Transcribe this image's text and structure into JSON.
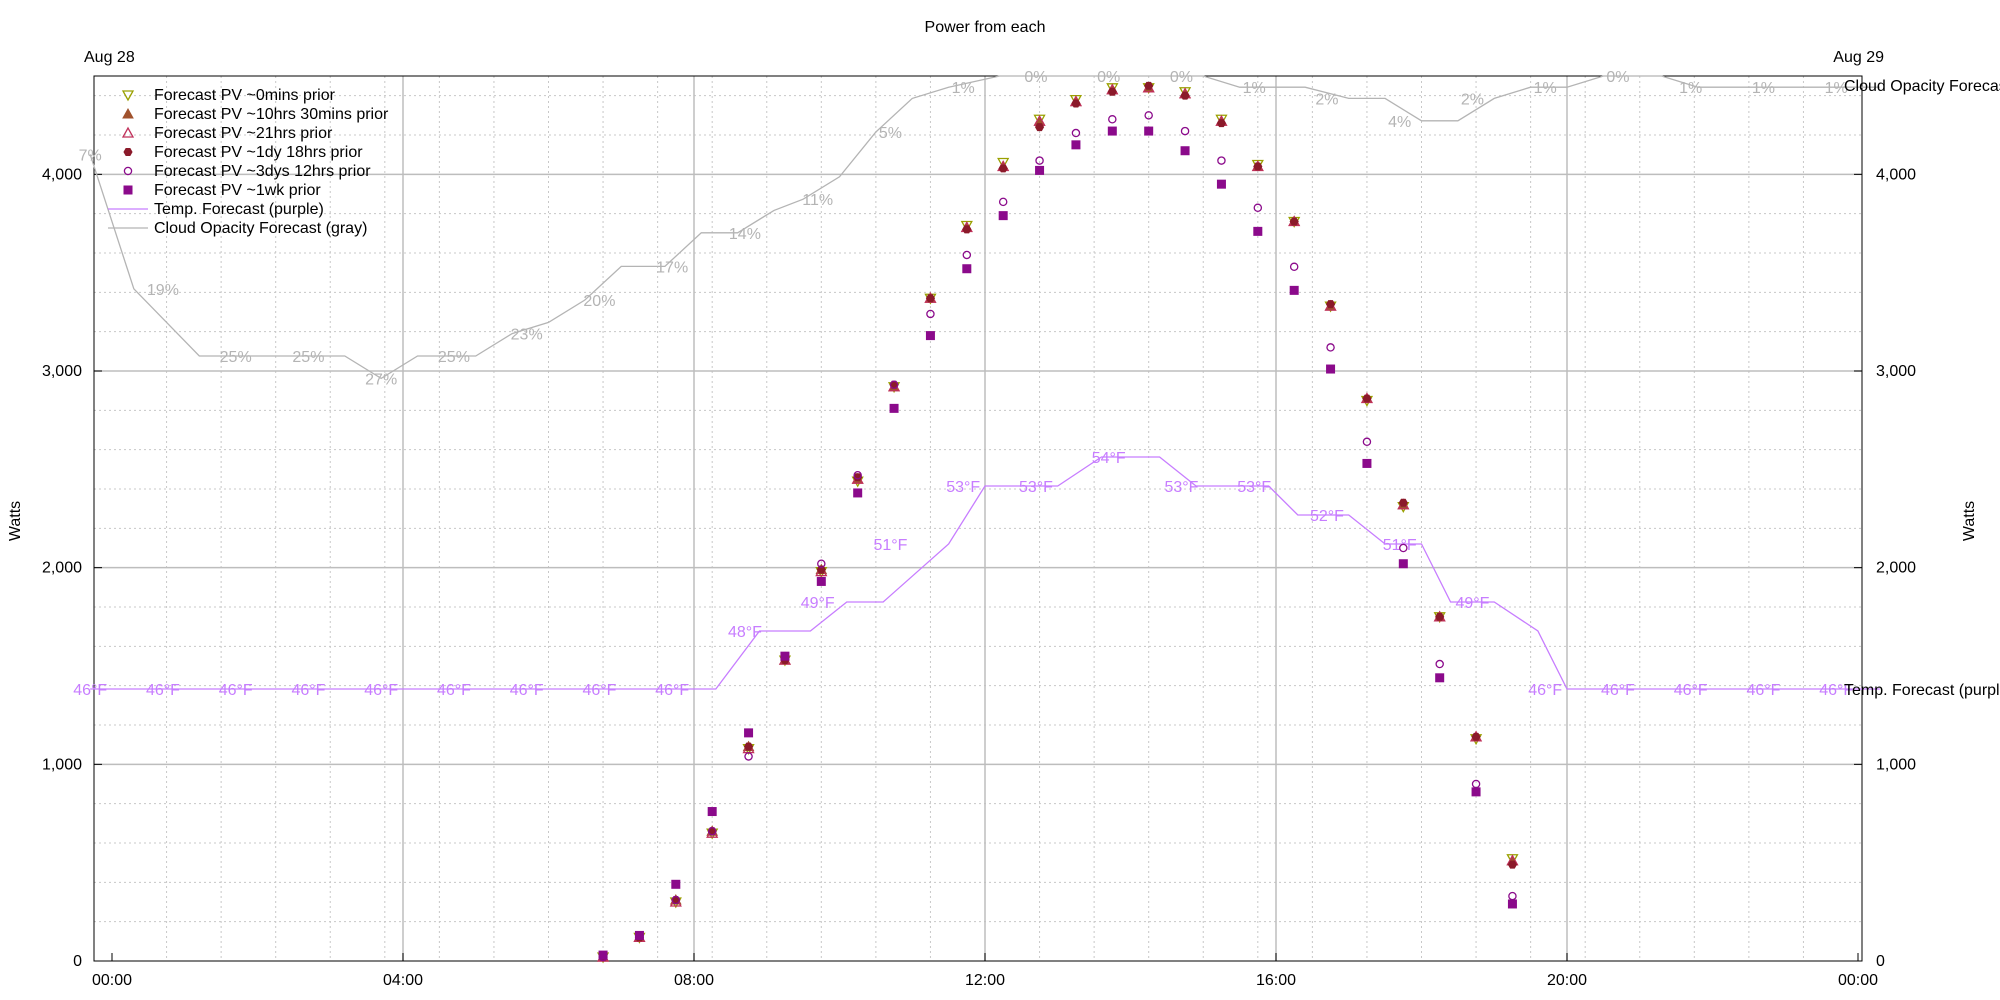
{
  "chart_data": {
    "type": "scatter",
    "title": "Power from each",
    "ylabel": "Watts",
    "ylabel_right": "Watts",
    "ylim": [
      0,
      4500
    ],
    "yticks": [
      0,
      1000,
      2000,
      3000,
      4000
    ],
    "ytick_labels": [
      "0",
      "1,000",
      "2,000",
      "3,000",
      "4,000"
    ],
    "xlim_hours": [
      0,
      24
    ],
    "xticks_hours": [
      0,
      4,
      8,
      12,
      16,
      20,
      24
    ],
    "xtick_labels": [
      "00:00",
      "04:00",
      "08:00",
      "12:00",
      "16:00",
      "20:00",
      "00:00"
    ],
    "date_labels": {
      "left": "Aug 28",
      "right": "Aug 29"
    },
    "grid": true,
    "legend_position": "top-left",
    "colors": {
      "purple": "#8b0a8b",
      "olive": "#9aa000",
      "brown": "#a0522d",
      "temp": "#c77dff",
      "cloud": "#b4b4b4",
      "grid": "#c8c8c8"
    },
    "x_hours": [
      6.75,
      7.25,
      7.75,
      8.25,
      8.75,
      9.25,
      9.75,
      10.25,
      10.75,
      11.25,
      11.75,
      12.25,
      12.75,
      13.25,
      13.75,
      14.25,
      14.75,
      15.25,
      15.75,
      16.25,
      16.75,
      17.25,
      17.75,
      18.25,
      18.75,
      19.25
    ],
    "series": [
      {
        "name": "Forecast PV ~0mins prior",
        "marker": "triangle-down-open",
        "color": "#9aa000",
        "values": [
          20,
          120,
          300,
          650,
          1080,
          1530,
          1980,
          2440,
          2920,
          3370,
          3740,
          4060,
          4280,
          4380,
          4440,
          4440,
          4420,
          4280,
          4050,
          3760,
          3330,
          2850,
          2310,
          1750,
          1130,
          520
        ]
      },
      {
        "name": "Forecast PV ~10hrs 30mins prior",
        "marker": "triangle-up-filled",
        "color": "#a0522d",
        "values": [
          20,
          120,
          310,
          660,
          1090,
          1530,
          1990,
          2450,
          2920,
          3370,
          3730,
          4040,
          4270,
          4370,
          4430,
          4440,
          4410,
          4270,
          4040,
          3760,
          3330,
          2860,
          2320,
          1750,
          1140,
          510
        ]
      },
      {
        "name": "Forecast PV ~21hrs prior",
        "marker": "triangle-up-open",
        "color": "#c0305a",
        "values": [
          20,
          120,
          300,
          650,
          1080,
          1530,
          1980,
          2450,
          2920,
          3370,
          3730,
          4040,
          4270,
          4370,
          4430,
          4440,
          4410,
          4270,
          4040,
          3760,
          3330,
          2860,
          2320,
          1750,
          1140,
          510
        ]
      },
      {
        "name": "Forecast PV ~1dy 18hrs prior",
        "marker": "hexagon-filled",
        "color": "#8b1a2a",
        "values": [
          20,
          120,
          310,
          660,
          1090,
          1530,
          1990,
          2460,
          2930,
          3370,
          3720,
          4030,
          4240,
          4360,
          4420,
          4450,
          4400,
          4260,
          4040,
          3760,
          3340,
          2860,
          2330,
          1750,
          1140,
          490
        ]
      },
      {
        "name": "Forecast PV ~3dys 12hrs prior",
        "marker": "circle-open",
        "color": "#8b0a8b",
        "values": [
          20,
          130,
          310,
          660,
          1040,
          1550,
          2020,
          2470,
          2930,
          3290,
          3590,
          3860,
          4070,
          4210,
          4280,
          4300,
          4220,
          4070,
          3830,
          3530,
          3120,
          2640,
          2100,
          1510,
          900,
          330
        ]
      },
      {
        "name": "Forecast PV ~1wk prior",
        "marker": "square-filled",
        "color": "#8b0a8b",
        "values": [
          30,
          130,
          390,
          760,
          1160,
          1550,
          1930,
          2380,
          2810,
          3180,
          3520,
          3790,
          4020,
          4150,
          4220,
          4220,
          4120,
          3950,
          3710,
          3410,
          3010,
          2530,
          2020,
          1440,
          860,
          290
        ]
      }
    ],
    "temperature": {
      "name": "Temp. Forecast (purple)",
      "right_label": "Temp. Forecast (purpl",
      "points": [
        [
          -0.3,
          46
        ],
        [
          8.3,
          46
        ],
        [
          8.9,
          48
        ],
        [
          9.6,
          48
        ],
        [
          10.1,
          49
        ],
        [
          10.6,
          49
        ],
        [
          11.5,
          51
        ],
        [
          12,
          53
        ],
        [
          13,
          53
        ],
        [
          13.6,
          54
        ],
        [
          14.4,
          54
        ],
        [
          14.9,
          53
        ],
        [
          15.9,
          53
        ],
        [
          16.3,
          52
        ],
        [
          17.0,
          52
        ],
        [
          17.5,
          51
        ],
        [
          18.0,
          51
        ],
        [
          18.4,
          49
        ],
        [
          19.0,
          49
        ],
        [
          19.6,
          48
        ],
        [
          20.0,
          46
        ],
        [
          24.3,
          46
        ]
      ],
      "labels": [
        {
          "x": -0.3,
          "t": 46,
          "text": "46°F"
        },
        {
          "x": 0.7,
          "t": 46,
          "text": "46°F"
        },
        {
          "x": 1.7,
          "t": 46,
          "text": "46°F"
        },
        {
          "x": 2.7,
          "t": 46,
          "text": "46°F"
        },
        {
          "x": 3.7,
          "t": 46,
          "text": "46°F"
        },
        {
          "x": 4.7,
          "t": 46,
          "text": "46°F"
        },
        {
          "x": 5.7,
          "t": 46,
          "text": "46°F"
        },
        {
          "x": 6.7,
          "t": 46,
          "text": "46°F"
        },
        {
          "x": 7.7,
          "t": 46,
          "text": "46°F"
        },
        {
          "x": 8.7,
          "t": 48,
          "text": "48°F"
        },
        {
          "x": 9.7,
          "t": 49,
          "text": "49°F"
        },
        {
          "x": 10.7,
          "t": 51,
          "text": "51°F"
        },
        {
          "x": 11.7,
          "t": 53,
          "text": "53°F"
        },
        {
          "x": 12.7,
          "t": 53,
          "text": "53°F"
        },
        {
          "x": 13.7,
          "t": 54,
          "text": "54°F"
        },
        {
          "x": 14.7,
          "t": 53,
          "text": "53°F"
        },
        {
          "x": 15.7,
          "t": 53,
          "text": "53°F"
        },
        {
          "x": 16.7,
          "t": 52,
          "text": "52°F"
        },
        {
          "x": 17.7,
          "t": 51,
          "text": "51°F"
        },
        {
          "x": 18.7,
          "t": 49,
          "text": "49°F"
        },
        {
          "x": 19.7,
          "t": 46,
          "text": "46°F"
        },
        {
          "x": 20.7,
          "t": 46,
          "text": "46°F"
        },
        {
          "x": 21.7,
          "t": 46,
          "text": "46°F"
        },
        {
          "x": 22.7,
          "t": 46,
          "text": "46°F"
        },
        {
          "x": 23.7,
          "t": 46,
          "text": "46°F"
        }
      ]
    },
    "cloud": {
      "name": "Cloud Opacity Forecast (gray)",
      "right_label": "Cloud Opacity Forecas",
      "points": [
        [
          -0.3,
          7
        ],
        [
          0.3,
          19
        ],
        [
          1.2,
          25
        ],
        [
          1.7,
          25
        ],
        [
          2.7,
          25
        ],
        [
          3.2,
          25
        ],
        [
          3.7,
          27
        ],
        [
          4.2,
          25
        ],
        [
          5.0,
          25
        ],
        [
          5.5,
          23
        ],
        [
          6.0,
          22
        ],
        [
          6.5,
          20
        ],
        [
          7.0,
          17
        ],
        [
          7.6,
          17
        ],
        [
          8.1,
          14
        ],
        [
          8.6,
          14
        ],
        [
          9.1,
          12
        ],
        [
          9.5,
          11
        ],
        [
          10.0,
          9
        ],
        [
          10.5,
          5
        ],
        [
          11.0,
          2
        ],
        [
          11.5,
          1
        ],
        [
          12.2,
          0
        ],
        [
          13.7,
          0
        ],
        [
          14.5,
          0
        ],
        [
          15.0,
          0
        ],
        [
          15.5,
          1
        ],
        [
          16.4,
          1
        ],
        [
          17.0,
          2
        ],
        [
          17.5,
          2
        ],
        [
          18.0,
          4
        ],
        [
          18.5,
          4
        ],
        [
          19.0,
          2
        ],
        [
          19.5,
          1
        ],
        [
          20.0,
          1
        ],
        [
          20.5,
          0
        ],
        [
          21.3,
          0
        ],
        [
          21.8,
          1
        ],
        [
          24.3,
          1
        ]
      ],
      "labels": [
        {
          "x": -0.3,
          "c": 7,
          "text": "7%"
        },
        {
          "x": 0.7,
          "c": 19,
          "text": "19%"
        },
        {
          "x": 1.7,
          "c": 25,
          "text": "25%"
        },
        {
          "x": 2.7,
          "c": 25,
          "text": "25%"
        },
        {
          "x": 3.7,
          "c": 27,
          "text": "27%"
        },
        {
          "x": 4.7,
          "c": 25,
          "text": "25%"
        },
        {
          "x": 5.7,
          "c": 23,
          "text": "23%"
        },
        {
          "x": 6.7,
          "c": 20,
          "text": "20%"
        },
        {
          "x": 7.7,
          "c": 17,
          "text": "17%"
        },
        {
          "x": 8.7,
          "c": 14,
          "text": "14%"
        },
        {
          "x": 9.7,
          "c": 11,
          "text": "11%"
        },
        {
          "x": 10.7,
          "c": 5,
          "text": "5%"
        },
        {
          "x": 11.7,
          "c": 1,
          "text": "1%"
        },
        {
          "x": 12.7,
          "c": 0,
          "text": "0%"
        },
        {
          "x": 13.7,
          "c": 0,
          "text": "0%"
        },
        {
          "x": 14.7,
          "c": 0,
          "text": "0%"
        },
        {
          "x": 15.7,
          "c": 1,
          "text": "1%"
        },
        {
          "x": 16.7,
          "c": 2,
          "text": "2%"
        },
        {
          "x": 17.7,
          "c": 4,
          "text": "4%"
        },
        {
          "x": 18.7,
          "c": 2,
          "text": "2%"
        },
        {
          "x": 19.7,
          "c": 1,
          "text": "1%"
        },
        {
          "x": 20.7,
          "c": 0,
          "text": "0%"
        },
        {
          "x": 21.7,
          "c": 1,
          "text": "1%"
        },
        {
          "x": 22.7,
          "c": 1,
          "text": "1%"
        },
        {
          "x": 23.7,
          "c": 1,
          "text": "1%"
        }
      ]
    },
    "legend": [
      {
        "label": "Forecast PV ~0mins prior",
        "marker": "triangle-down-open",
        "color": "#9aa000"
      },
      {
        "label": "Forecast PV ~10hrs 30mins prior",
        "marker": "triangle-up-filled",
        "color": "#a0522d"
      },
      {
        "label": "Forecast PV ~21hrs prior",
        "marker": "triangle-up-open",
        "color": "#c0305a"
      },
      {
        "label": "Forecast PV ~1dy 18hrs prior",
        "marker": "hexagon-filled",
        "color": "#8b1a2a"
      },
      {
        "label": "Forecast PV ~3dys 12hrs prior",
        "marker": "circle-open",
        "color": "#8b0a8b"
      },
      {
        "label": "Forecast PV ~1wk prior",
        "marker": "square-filled",
        "color": "#8b0a8b"
      },
      {
        "label": "Temp. Forecast (purple)",
        "marker": "line",
        "color": "#c77dff"
      },
      {
        "label": "Cloud Opacity Forecast (gray)",
        "marker": "line",
        "color": "#b4b4b4"
      }
    ]
  }
}
